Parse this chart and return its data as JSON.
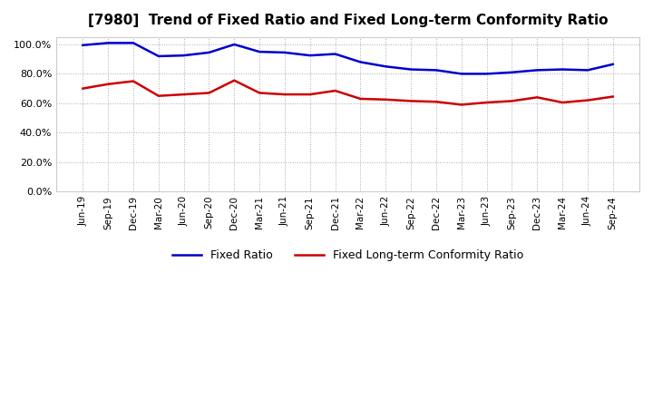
{
  "title": "[7980]  Trend of Fixed Ratio and Fixed Long-term Conformity Ratio",
  "x_labels": [
    "Jun-19",
    "Sep-19",
    "Dec-19",
    "Mar-20",
    "Jun-20",
    "Sep-20",
    "Dec-20",
    "Mar-21",
    "Jun-21",
    "Sep-21",
    "Dec-21",
    "Mar-22",
    "Jun-22",
    "Sep-22",
    "Dec-22",
    "Mar-23",
    "Jun-23",
    "Sep-23",
    "Dec-23",
    "Mar-24",
    "Jun-24",
    "Sep-24"
  ],
  "fixed_ratio": [
    99.5,
    101.0,
    101.0,
    92.0,
    92.5,
    94.5,
    100.0,
    95.0,
    94.5,
    92.5,
    93.5,
    88.0,
    85.0,
    83.0,
    82.5,
    80.0,
    80.0,
    81.0,
    82.5,
    83.0,
    82.5,
    86.5
  ],
  "fixed_lt_ratio": [
    70.0,
    73.0,
    75.0,
    65.0,
    66.0,
    67.0,
    75.5,
    67.0,
    66.0,
    66.0,
    68.5,
    63.0,
    62.5,
    61.5,
    61.0,
    59.0,
    60.5,
    61.5,
    64.0,
    60.5,
    62.0,
    64.5
  ],
  "fixed_ratio_color": "#0000cc",
  "fixed_lt_ratio_color": "#cc0000",
  "ylim": [
    0,
    105
  ],
  "yticks": [
    0,
    20,
    40,
    60,
    80,
    100
  ],
  "background_color": "#ffffff",
  "plot_bg_color": "#ffffff",
  "grid_color": "#aaaaaa",
  "legend_fixed_ratio": "Fixed Ratio",
  "legend_fixed_lt_ratio": "Fixed Long-term Conformity Ratio"
}
